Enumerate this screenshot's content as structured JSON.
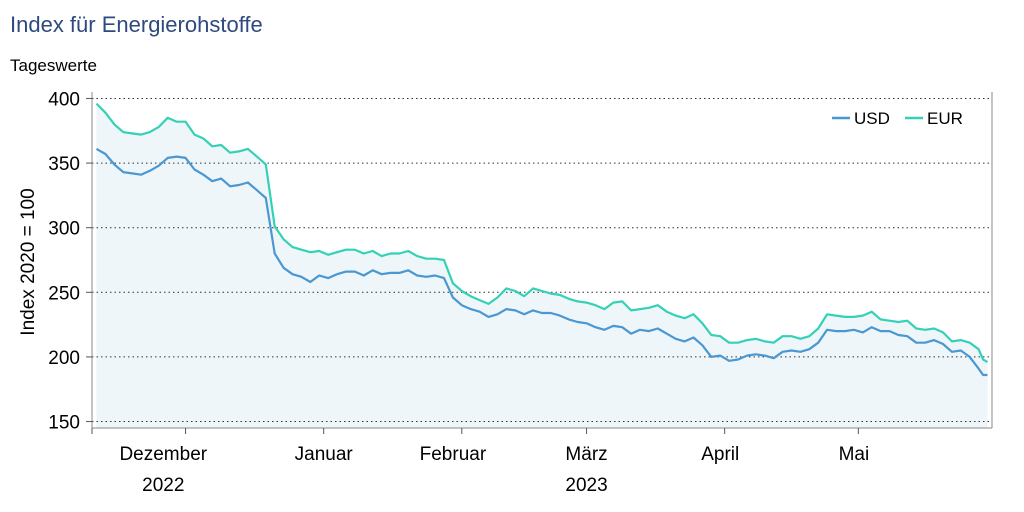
{
  "title": "Index für Energierohstoffe",
  "subtitle": "Tageswerte",
  "colors": {
    "title": "#2f4a7e",
    "usd": "#4a97d2",
    "eur": "#34d1b6",
    "fill": "#eef6f9"
  },
  "chart_data": {
    "type": "line",
    "ylabel": "Index 2020 = 100",
    "ylim": [
      145,
      405
    ],
    "yticks": [
      150,
      200,
      250,
      300,
      350,
      400
    ],
    "xlim": [
      "2022-11-10",
      "2023-05-31"
    ],
    "grid": "horizontal-dotted",
    "legend": "top-right",
    "month_labels": [
      {
        "date": "2022-11-26",
        "label": "Dezember"
      },
      {
        "date": "2023-01-01",
        "label": "Januar"
      },
      {
        "date": "2023-01-30",
        "label": "Februar"
      },
      {
        "date": "2023-03-01",
        "label": "März"
      },
      {
        "date": "2023-03-31",
        "label": "April"
      },
      {
        "date": "2023-04-30",
        "label": "Mai"
      }
    ],
    "month_ticks": [
      "2022-11-10",
      "2022-12-01",
      "2023-01-01",
      "2023-02-01",
      "2023-03-01",
      "2023-04-01",
      "2023-05-01"
    ],
    "year_labels": [
      {
        "date": "2022-11-26",
        "label": "2022"
      },
      {
        "date": "2023-03-01",
        "label": "2023"
      }
    ],
    "series": [
      {
        "name": "USD",
        "points": [
          [
            "2022-11-11",
            361
          ],
          [
            "2022-11-13",
            357
          ],
          [
            "2022-11-15",
            349
          ],
          [
            "2022-11-17",
            343
          ],
          [
            "2022-11-19",
            342
          ],
          [
            "2022-11-21",
            341
          ],
          [
            "2022-11-23",
            344
          ],
          [
            "2022-11-25",
            348
          ],
          [
            "2022-11-27",
            354
          ],
          [
            "2022-11-29",
            355
          ],
          [
            "2022-12-01",
            354
          ],
          [
            "2022-12-03",
            345
          ],
          [
            "2022-12-05",
            341
          ],
          [
            "2022-12-07",
            336
          ],
          [
            "2022-12-09",
            338
          ],
          [
            "2022-12-11",
            332
          ],
          [
            "2022-12-13",
            333
          ],
          [
            "2022-12-15",
            335
          ],
          [
            "2022-12-17",
            329
          ],
          [
            "2022-12-19",
            323
          ],
          [
            "2022-12-21",
            280
          ],
          [
            "2022-12-23",
            269
          ],
          [
            "2022-12-25",
            264
          ],
          [
            "2022-12-27",
            262
          ],
          [
            "2022-12-29",
            258
          ],
          [
            "2022-12-31",
            263
          ],
          [
            "2023-01-02",
            261
          ],
          [
            "2023-01-04",
            264
          ],
          [
            "2023-01-06",
            266
          ],
          [
            "2023-01-08",
            266
          ],
          [
            "2023-01-10",
            263
          ],
          [
            "2023-01-12",
            267
          ],
          [
            "2023-01-14",
            264
          ],
          [
            "2023-01-16",
            265
          ],
          [
            "2023-01-18",
            265
          ],
          [
            "2023-01-20",
            267
          ],
          [
            "2023-01-22",
            263
          ],
          [
            "2023-01-24",
            262
          ],
          [
            "2023-01-26",
            263
          ],
          [
            "2023-01-28",
            261
          ],
          [
            "2023-01-30",
            246
          ],
          [
            "2023-02-01",
            240
          ],
          [
            "2023-02-03",
            237
          ],
          [
            "2023-02-05",
            235
          ],
          [
            "2023-02-07",
            231
          ],
          [
            "2023-02-09",
            233
          ],
          [
            "2023-02-11",
            237
          ],
          [
            "2023-02-13",
            236
          ],
          [
            "2023-02-15",
            233
          ],
          [
            "2023-02-17",
            236
          ],
          [
            "2023-02-19",
            234
          ],
          [
            "2023-02-21",
            234
          ],
          [
            "2023-02-23",
            232
          ],
          [
            "2023-02-25",
            229
          ],
          [
            "2023-02-27",
            227
          ],
          [
            "2023-03-01",
            226
          ],
          [
            "2023-03-03",
            223
          ],
          [
            "2023-03-05",
            221
          ],
          [
            "2023-03-07",
            224
          ],
          [
            "2023-03-09",
            223
          ],
          [
            "2023-03-11",
            218
          ],
          [
            "2023-03-13",
            221
          ],
          [
            "2023-03-15",
            220
          ],
          [
            "2023-03-17",
            222
          ],
          [
            "2023-03-19",
            218
          ],
          [
            "2023-03-21",
            214
          ],
          [
            "2023-03-23",
            212
          ],
          [
            "2023-03-25",
            215
          ],
          [
            "2023-03-27",
            209
          ],
          [
            "2023-03-29",
            200
          ],
          [
            "2023-03-31",
            201
          ],
          [
            "2023-04-02",
            197
          ],
          [
            "2023-04-04",
            198
          ],
          [
            "2023-04-06",
            201
          ],
          [
            "2023-04-08",
            202
          ],
          [
            "2023-04-10",
            201
          ],
          [
            "2023-04-12",
            199
          ],
          [
            "2023-04-14",
            204
          ],
          [
            "2023-04-16",
            205
          ],
          [
            "2023-04-18",
            204
          ],
          [
            "2023-04-20",
            206
          ],
          [
            "2023-04-22",
            211
          ],
          [
            "2023-04-24",
            221
          ],
          [
            "2023-04-26",
            220
          ],
          [
            "2023-04-28",
            220
          ],
          [
            "2023-04-30",
            221
          ],
          [
            "2023-05-02",
            219
          ],
          [
            "2023-05-04",
            223
          ],
          [
            "2023-05-06",
            220
          ],
          [
            "2023-05-08",
            220
          ],
          [
            "2023-05-10",
            217
          ],
          [
            "2023-05-12",
            216
          ],
          [
            "2023-05-14",
            211
          ],
          [
            "2023-05-16",
            211
          ],
          [
            "2023-05-18",
            213
          ],
          [
            "2023-05-20",
            210
          ],
          [
            "2023-05-22",
            204
          ],
          [
            "2023-05-24",
            205
          ],
          [
            "2023-05-26",
            200
          ],
          [
            "2023-05-28",
            191
          ],
          [
            "2023-05-29",
            186
          ],
          [
            "2023-05-30",
            186
          ]
        ]
      },
      {
        "name": "EUR",
        "points": [
          [
            "2022-11-11",
            396
          ],
          [
            "2022-11-13",
            389
          ],
          [
            "2022-11-15",
            380
          ],
          [
            "2022-11-17",
            374
          ],
          [
            "2022-11-19",
            373
          ],
          [
            "2022-11-21",
            372
          ],
          [
            "2022-11-23",
            374
          ],
          [
            "2022-11-25",
            378
          ],
          [
            "2022-11-27",
            385
          ],
          [
            "2022-11-29",
            382
          ],
          [
            "2022-12-01",
            382
          ],
          [
            "2022-12-03",
            372
          ],
          [
            "2022-12-05",
            369
          ],
          [
            "2022-12-07",
            363
          ],
          [
            "2022-12-09",
            364
          ],
          [
            "2022-12-11",
            358
          ],
          [
            "2022-12-13",
            359
          ],
          [
            "2022-12-15",
            361
          ],
          [
            "2022-12-17",
            355
          ],
          [
            "2022-12-19",
            349
          ],
          [
            "2022-12-21",
            301
          ],
          [
            "2022-12-23",
            291
          ],
          [
            "2022-12-25",
            285
          ],
          [
            "2022-12-27",
            283
          ],
          [
            "2022-12-29",
            281
          ],
          [
            "2022-12-31",
            282
          ],
          [
            "2023-01-02",
            279
          ],
          [
            "2023-01-04",
            281
          ],
          [
            "2023-01-06",
            283
          ],
          [
            "2023-01-08",
            283
          ],
          [
            "2023-01-10",
            280
          ],
          [
            "2023-01-12",
            282
          ],
          [
            "2023-01-14",
            278
          ],
          [
            "2023-01-16",
            280
          ],
          [
            "2023-01-18",
            280
          ],
          [
            "2023-01-20",
            282
          ],
          [
            "2023-01-22",
            278
          ],
          [
            "2023-01-24",
            276
          ],
          [
            "2023-01-26",
            276
          ],
          [
            "2023-01-28",
            275
          ],
          [
            "2023-01-30",
            257
          ],
          [
            "2023-02-01",
            251
          ],
          [
            "2023-02-03",
            247
          ],
          [
            "2023-02-05",
            244
          ],
          [
            "2023-02-07",
            241
          ],
          [
            "2023-02-09",
            246
          ],
          [
            "2023-02-11",
            253
          ],
          [
            "2023-02-13",
            251
          ],
          [
            "2023-02-15",
            247
          ],
          [
            "2023-02-17",
            253
          ],
          [
            "2023-02-19",
            251
          ],
          [
            "2023-02-21",
            249
          ],
          [
            "2023-02-23",
            248
          ],
          [
            "2023-02-25",
            245
          ],
          [
            "2023-02-27",
            243
          ],
          [
            "2023-03-01",
            242
          ],
          [
            "2023-03-03",
            240
          ],
          [
            "2023-03-05",
            237
          ],
          [
            "2023-03-07",
            242
          ],
          [
            "2023-03-09",
            243
          ],
          [
            "2023-03-11",
            236
          ],
          [
            "2023-03-13",
            237
          ],
          [
            "2023-03-15",
            238
          ],
          [
            "2023-03-17",
            240
          ],
          [
            "2023-03-19",
            235
          ],
          [
            "2023-03-21",
            232
          ],
          [
            "2023-03-23",
            230
          ],
          [
            "2023-03-25",
            233
          ],
          [
            "2023-03-27",
            226
          ],
          [
            "2023-03-29",
            217
          ],
          [
            "2023-03-31",
            216
          ],
          [
            "2023-04-02",
            211
          ],
          [
            "2023-04-04",
            211
          ],
          [
            "2023-04-06",
            213
          ],
          [
            "2023-04-08",
            214
          ],
          [
            "2023-04-10",
            212
          ],
          [
            "2023-04-12",
            211
          ],
          [
            "2023-04-14",
            216
          ],
          [
            "2023-04-16",
            216
          ],
          [
            "2023-04-18",
            214
          ],
          [
            "2023-04-20",
            216
          ],
          [
            "2023-04-22",
            222
          ],
          [
            "2023-04-24",
            233
          ],
          [
            "2023-04-26",
            232
          ],
          [
            "2023-04-28",
            231
          ],
          [
            "2023-04-30",
            231
          ],
          [
            "2023-05-02",
            232
          ],
          [
            "2023-05-04",
            235
          ],
          [
            "2023-05-06",
            229
          ],
          [
            "2023-05-08",
            228
          ],
          [
            "2023-05-10",
            227
          ],
          [
            "2023-05-12",
            228
          ],
          [
            "2023-05-14",
            222
          ],
          [
            "2023-05-16",
            221
          ],
          [
            "2023-05-18",
            222
          ],
          [
            "2023-05-20",
            219
          ],
          [
            "2023-05-22",
            212
          ],
          [
            "2023-05-24",
            213
          ],
          [
            "2023-05-26",
            211
          ],
          [
            "2023-05-28",
            206
          ],
          [
            "2023-05-29",
            198
          ],
          [
            "2023-05-30",
            196
          ]
        ]
      }
    ]
  }
}
